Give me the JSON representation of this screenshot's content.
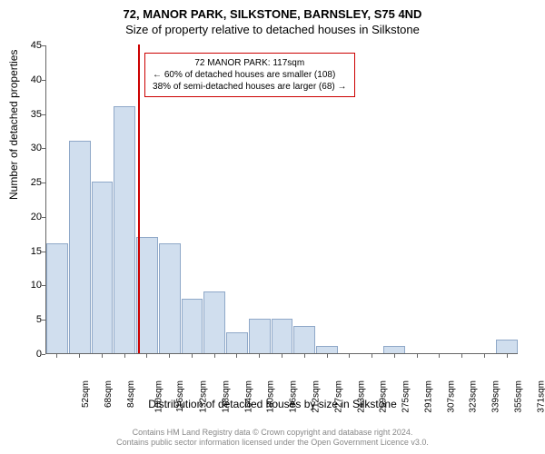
{
  "chart": {
    "type": "histogram",
    "title_main": "72, MANOR PARK, SILKSTONE, BARNSLEY, S75 4ND",
    "title_sub": "Size of property relative to detached houses in Silkstone",
    "y_label": "Number of detached properties",
    "x_title": "Distribution of detached houses by size in Silkstone",
    "background_color": "#ffffff",
    "bar_fill": "#d0deee",
    "bar_stroke": "#8fa8c8",
    "marker_color": "#cc0000",
    "text_color": "#333333",
    "title_fontsize": 13,
    "label_fontsize": 12,
    "tick_fontsize": 10,
    "ylim": [
      0,
      45
    ],
    "yticks": [
      0,
      5,
      10,
      15,
      20,
      25,
      30,
      35,
      40,
      45
    ],
    "x_categories": [
      "52sqm",
      "68sqm",
      "84sqm",
      "100sqm",
      "116sqm",
      "132sqm",
      "148sqm",
      "164sqm",
      "180sqm",
      "196sqm",
      "212sqm",
      "227sqm",
      "243sqm",
      "259sqm",
      "275sqm",
      "291sqm",
      "307sqm",
      "323sqm",
      "339sqm",
      "355sqm",
      "371sqm"
    ],
    "values": [
      16,
      31,
      25,
      36,
      17,
      16,
      8,
      9,
      3,
      5,
      5,
      4,
      1,
      0,
      0,
      1,
      0,
      0,
      0,
      0,
      2
    ],
    "marker_position_index": 4,
    "annotation": {
      "lines": [
        "72 MANOR PARK: 117sqm",
        "← 60% of detached houses are smaller (108)",
        "38% of semi-detached houses are larger (68) →"
      ],
      "border_color": "#cc0000"
    },
    "credits": [
      "Contains HM Land Registry data © Crown copyright and database right 2024.",
      "Contains public sector information licensed under the Open Government Licence v3.0."
    ]
  }
}
